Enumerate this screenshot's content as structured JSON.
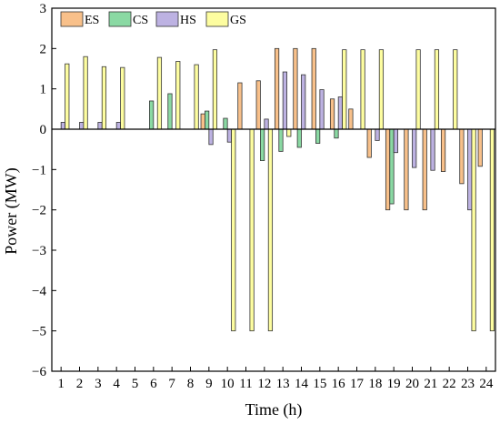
{
  "chart_data": {
    "type": "bar",
    "xlabel": "Time (h)",
    "ylabel": "Power (MW)",
    "ylim": [
      -6,
      3
    ],
    "yticks": [
      -6,
      -5,
      -4,
      -3,
      -2,
      -1,
      0,
      1,
      2,
      3
    ],
    "categories": [
      "1",
      "2",
      "3",
      "4",
      "5",
      "6",
      "7",
      "8",
      "9",
      "10",
      "11",
      "12",
      "13",
      "14",
      "15",
      "16",
      "17",
      "18",
      "19",
      "20",
      "21",
      "22",
      "23",
      "24"
    ],
    "legend_position": "top-left",
    "grid": false,
    "series": [
      {
        "name": "ES",
        "color": "#f8c08a",
        "values": [
          0,
          0,
          0,
          0,
          0,
          0,
          0,
          0,
          0.38,
          0,
          1.15,
          1.2,
          2.0,
          2.0,
          2.0,
          0.75,
          0.5,
          -0.7,
          -2.0,
          -2.0,
          -2.0,
          -1.05,
          -1.35,
          -0.92
        ]
      },
      {
        "name": "CS",
        "color": "#8ad9a3",
        "values": [
          0,
          0,
          0,
          0,
          0,
          0.7,
          0.88,
          0,
          0.45,
          0.27,
          0,
          -0.78,
          -0.55,
          -0.45,
          -0.35,
          -0.22,
          0,
          0,
          -1.85,
          0,
          0,
          0,
          0,
          0
        ]
      },
      {
        "name": "HS",
        "color": "#bdb2e2",
        "values": [
          0.17,
          0.17,
          0.17,
          0.17,
          0,
          0,
          0,
          0,
          -0.38,
          -0.32,
          0,
          0.25,
          1.42,
          1.35,
          0.98,
          0.8,
          0,
          -0.28,
          -0.58,
          -0.95,
          -1.02,
          0,
          -2.0,
          0
        ]
      },
      {
        "name": "GS",
        "color": "#fdfda0",
        "values": [
          1.62,
          1.8,
          1.55,
          1.53,
          0,
          1.78,
          1.68,
          1.6,
          1.97,
          -5.0,
          -5.0,
          -5.0,
          -0.18,
          0,
          0,
          1.97,
          1.97,
          1.97,
          0,
          1.97,
          1.97,
          1.97,
          -5.0,
          -5.0
        ]
      }
    ]
  }
}
